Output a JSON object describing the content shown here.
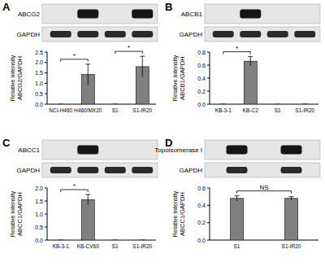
{
  "chart_data": [
    {
      "type": "bar",
      "panel": "A",
      "blot_labels": [
        "ABCG2",
        "GAPDH"
      ],
      "categories": [
        "NCI-H460",
        "H460/MX20",
        "S1",
        "S1-IR20"
      ],
      "values": [
        0,
        1.42,
        0,
        1.8
      ],
      "errors": [
        0,
        0.5,
        0,
        0.5
      ],
      "y_label": [
        "Relative intensity",
        "ABCG2/GAPDH"
      ],
      "color": "#808080",
      "ylim": [
        0,
        2.5
      ],
      "yticks": [
        {
          "value": 0,
          "label": "0.0"
        },
        0.5,
        {
          "value": 1,
          "label": "1.0"
        },
        1.5,
        {
          "value": 2,
          "label": "2.0"
        },
        2.5
      ],
      "annotations": [
        {
          "text": "*",
          "from": 0,
          "to": 1
        },
        {
          "text": "*",
          "from": 2,
          "to": 3
        }
      ]
    },
    {
      "type": "bar",
      "panel": "B",
      "blot_labels": [
        "ABCB1",
        "GAPDH"
      ],
      "categories": [
        "KB-3-1",
        "KB-C2",
        "S1",
        "S1-IR20"
      ],
      "values": [
        0,
        0.66,
        0,
        0
      ],
      "errors": [
        0,
        0.07,
        0,
        0
      ],
      "y_label": [
        "Relative intensity",
        "ABCB1/GAPDH"
      ],
      "color": "#808080",
      "ylim": [
        0,
        0.8
      ],
      "yticks": [
        {
          "value": 0,
          "label": "0.0"
        },
        0.2,
        0.4,
        0.6,
        0.8
      ],
      "annotations": [
        {
          "text": "*",
          "from": 0,
          "to": 1
        }
      ]
    },
    {
      "type": "bar",
      "panel": "C",
      "blot_labels": [
        "ABCC1",
        "GAPDH"
      ],
      "categories": [
        "KB-3-1",
        "KB-CV60",
        "S1",
        "S1-IR20"
      ],
      "values": [
        0,
        1.55,
        0,
        0
      ],
      "errors": [
        0,
        0.2,
        0,
        0
      ],
      "y_label": [
        "Relative intensity",
        "ABCC1/GAPDH"
      ],
      "color": "#808080",
      "ylim": [
        0,
        2
      ],
      "yticks": [
        {
          "value": 0,
          "label": "0.0"
        },
        0.5,
        {
          "value": 1,
          "label": "1.0"
        },
        1.5,
        {
          "value": 2,
          "label": "2.0"
        }
      ],
      "annotations": [
        {
          "text": "*",
          "from": 0,
          "to": 1
        }
      ]
    },
    {
      "type": "bar",
      "panel": "D",
      "blot_labels": [
        "Topoisomerase I",
        "GAPDH"
      ],
      "categories": [
        "S1",
        "S1-IR20"
      ],
      "values": [
        0.48,
        0.48
      ],
      "errors": [
        0.03,
        0.02
      ],
      "y_label": [
        "Relative intensity",
        "ABCC1/GAPDH"
      ],
      "color": "#808080",
      "ylim": [
        0,
        0.6
      ],
      "yticks": [
        {
          "value": 0,
          "label": "0.0"
        },
        0.2,
        0.4,
        0.6
      ],
      "annotations": [
        {
          "text": "NS",
          "from": 0,
          "to": 1
        }
      ]
    }
  ]
}
